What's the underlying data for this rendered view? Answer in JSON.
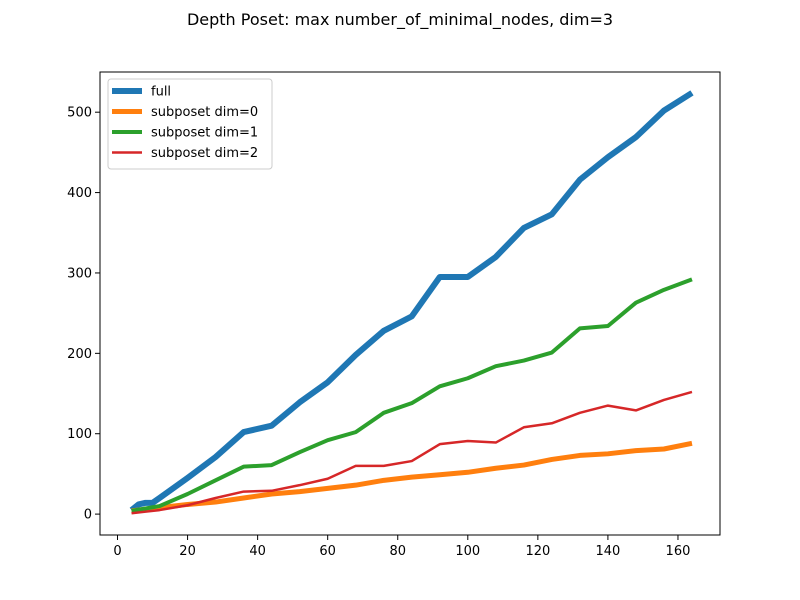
{
  "chart_data": {
    "type": "line",
    "title": "Depth Poset: max number_of_minimal_nodes, dim=3",
    "xlabel": "",
    "ylabel": "",
    "xlim": [
      -5,
      172
    ],
    "ylim": [
      -26,
      550
    ],
    "xticks": [
      0,
      20,
      40,
      60,
      80,
      100,
      120,
      140,
      160
    ],
    "yticks": [
      0,
      100,
      200,
      300,
      400,
      500
    ],
    "grid": false,
    "legend_position": "top-left",
    "series": [
      {
        "name": "full",
        "color": "#1f77b4",
        "x": [
          4,
          6,
          8,
          10,
          12,
          20,
          28,
          36,
          44,
          52,
          60,
          68,
          76,
          84,
          92,
          100,
          108,
          116,
          124,
          132,
          140,
          148,
          156,
          164
        ],
        "y": [
          5,
          12,
          14,
          14,
          20,
          45,
          71,
          102,
          110,
          139,
          164,
          198,
          228,
          246,
          295,
          295,
          320,
          356,
          373,
          416,
          444,
          469,
          502,
          524
        ]
      },
      {
        "name": "subposet dim=0",
        "color": "#ff7f0e",
        "x": [
          4,
          8,
          12,
          20,
          28,
          36,
          44,
          52,
          60,
          68,
          76,
          84,
          92,
          100,
          108,
          116,
          124,
          132,
          140,
          148,
          156,
          164
        ],
        "y": [
          4,
          6,
          8,
          12,
          15,
          20,
          25,
          28,
          32,
          36,
          42,
          46,
          49,
          52,
          57,
          61,
          68,
          73,
          75,
          79,
          81,
          88
        ]
      },
      {
        "name": "subposet dim=1",
        "color": "#2ca02c",
        "x": [
          4,
          8,
          12,
          20,
          28,
          36,
          44,
          52,
          60,
          68,
          76,
          84,
          92,
          100,
          108,
          116,
          124,
          132,
          140,
          148,
          156,
          164
        ],
        "y": [
          4,
          7,
          10,
          25,
          42,
          59,
          61,
          77,
          92,
          102,
          126,
          138,
          159,
          169,
          184,
          191,
          201,
          231,
          234,
          263,
          279,
          292
        ]
      },
      {
        "name": "subposet dim=2",
        "color": "#d62728",
        "x": [
          4,
          8,
          12,
          20,
          28,
          36,
          44,
          52,
          60,
          68,
          76,
          84,
          92,
          100,
          108,
          116,
          124,
          132,
          140,
          148,
          156,
          164
        ],
        "y": [
          1,
          3,
          5,
          11,
          20,
          28,
          29,
          36,
          44,
          60,
          60,
          66,
          87,
          91,
          89,
          108,
          113,
          126,
          135,
          129,
          142,
          152
        ]
      }
    ]
  }
}
